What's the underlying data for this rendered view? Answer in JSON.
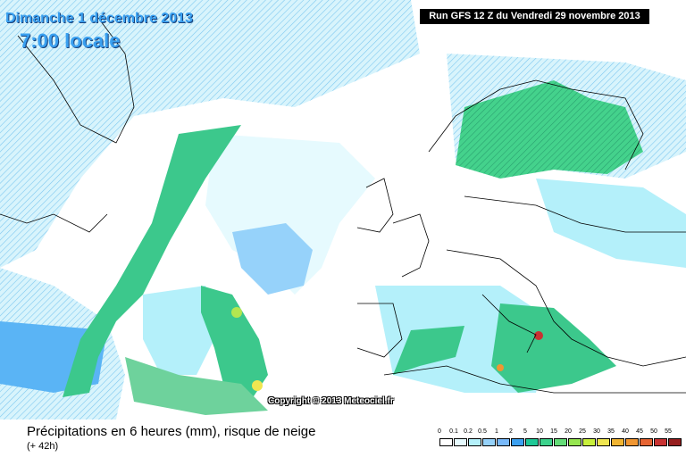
{
  "header": {
    "date": "Dimanche 1 décembre 2013",
    "time": "7:00 locale",
    "run": "Run GFS 12 Z du Vendredi 29 novembre 2013"
  },
  "copyright": "Copyright © 2013 Meteociel.fr",
  "footer": {
    "caption": "Précipitations en 6 heures (mm), risque de neige",
    "lead": "(+ 42h)"
  },
  "legend": {
    "labels": [
      "0",
      "0.1",
      "0.2",
      "0.5",
      "1",
      "2",
      "5",
      "10",
      "15",
      "20",
      "25",
      "30",
      "35",
      "40",
      "45",
      "50",
      "55"
    ]
  }
}
